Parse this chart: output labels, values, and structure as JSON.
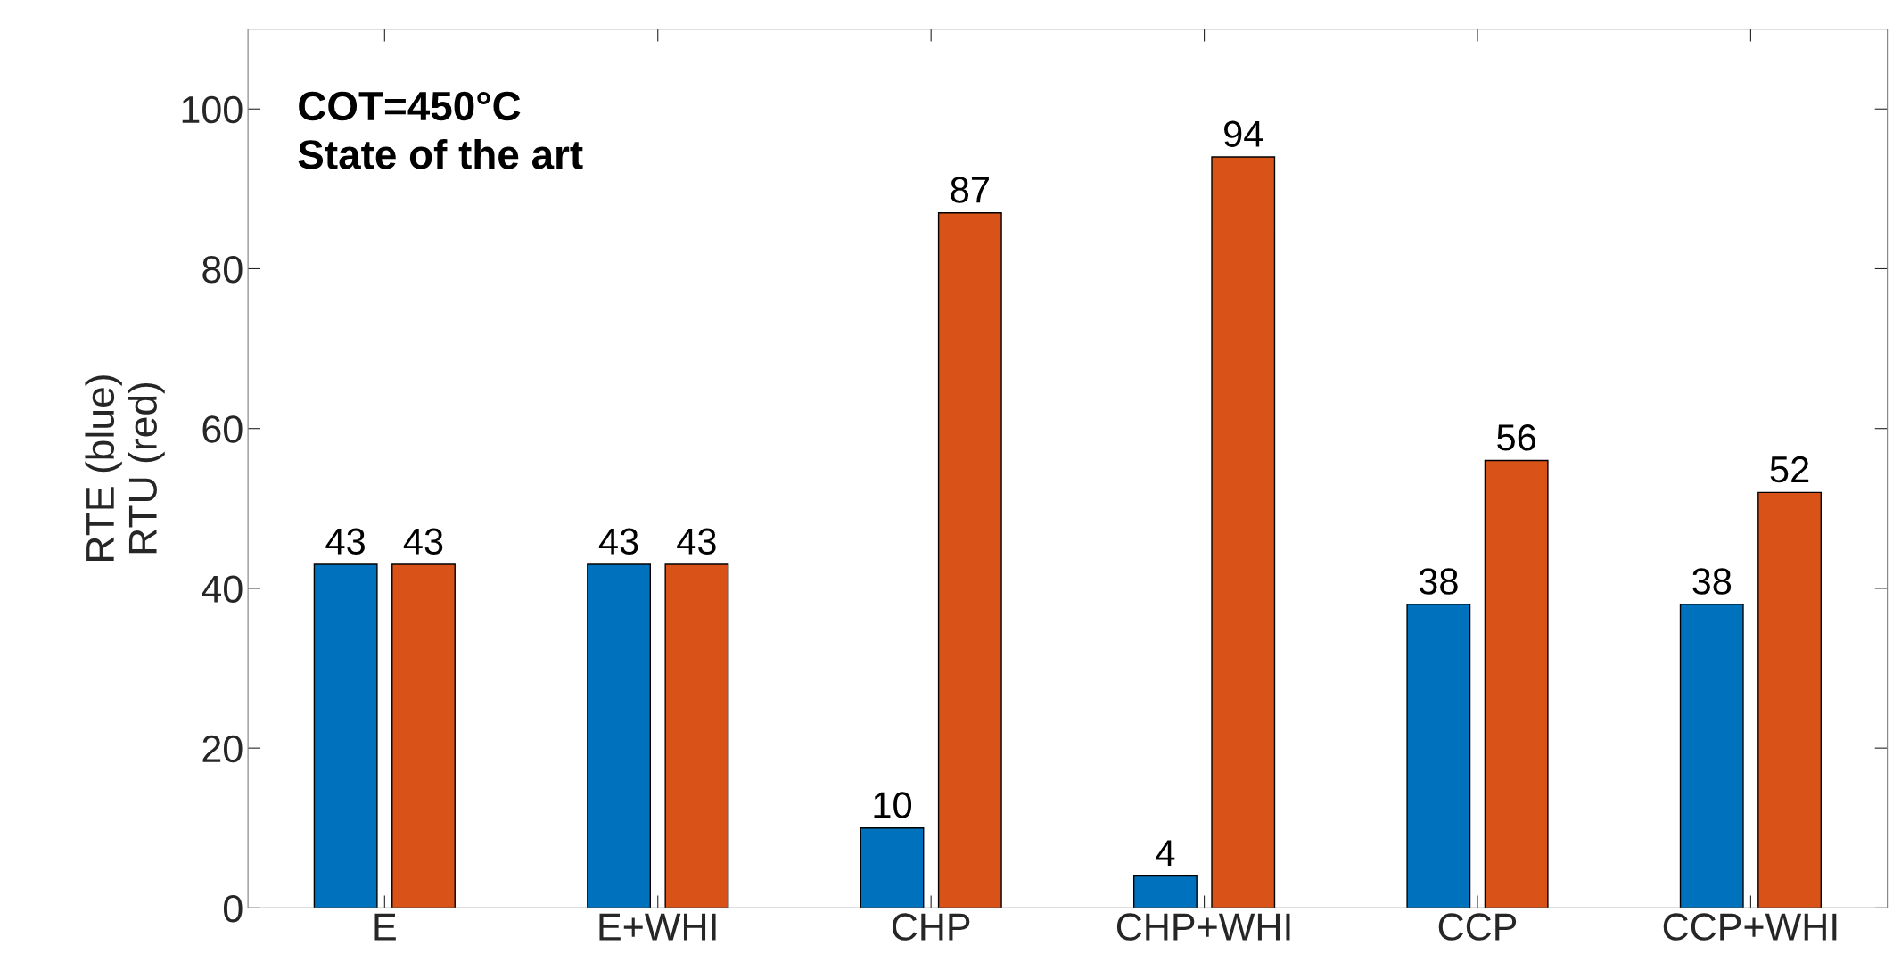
{
  "chart_data": {
    "type": "bar",
    "categories": [
      "E",
      "E+WHI",
      "CHP",
      "CHP+WHI",
      "CCP",
      "CCP+WHI"
    ],
    "series": [
      {
        "color": "#0072bd",
        "values": [
          43,
          43,
          10,
          4,
          38,
          38
        ]
      },
      {
        "color": "#d95319",
        "values": [
          43,
          43,
          87,
          94,
          56,
          52
        ]
      }
    ],
    "ylabel": "RTE (blue)\nRTU (red)",
    "ylim": [
      0,
      110
    ],
    "yticks": [
      0,
      20,
      40,
      60,
      80,
      100
    ],
    "annotations": [
      "COT=450°C\nState of the art"
    ],
    "data_labels": true,
    "grid": false,
    "legend": false
  }
}
